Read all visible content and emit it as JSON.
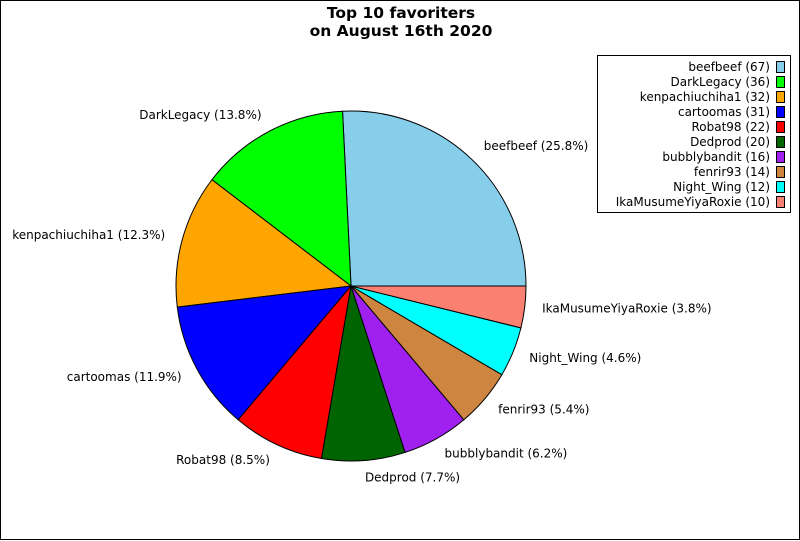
{
  "chart_data": {
    "type": "pie",
    "title_lines": [
      "Top 10 favoriters",
      "on August 16th 2020"
    ],
    "start_angle_deg": 0,
    "direction": "counterclockwise",
    "legend_position": "top-right",
    "slices": [
      {
        "name": "beefbeef",
        "value": 67,
        "percent_label": "beefbeef (25.8%)",
        "legend_label": "beefbeef (67)",
        "color": "#87ceeb"
      },
      {
        "name": "DarkLegacy",
        "value": 36,
        "percent_label": "DarkLegacy (13.8%)",
        "legend_label": "DarkLegacy (36)",
        "color": "#00ff00"
      },
      {
        "name": "kenpachiuchiha1",
        "value": 32,
        "percent_label": "kenpachiuchiha1 (12.3%)",
        "legend_label": "kenpachiuchiha1 (32)",
        "color": "#ffa500"
      },
      {
        "name": "cartoomas",
        "value": 31,
        "percent_label": "cartoomas (11.9%)",
        "legend_label": "cartoomas (31)",
        "color": "#0000ff"
      },
      {
        "name": "Robat98",
        "value": 22,
        "percent_label": "Robat98 (8.5%)",
        "legend_label": "Robat98 (22)",
        "color": "#ff0000"
      },
      {
        "name": "Dedprod",
        "value": 20,
        "percent_label": "Dedprod (7.7%)",
        "legend_label": "Dedprod (20)",
        "color": "#006400"
      },
      {
        "name": "bubblybandit",
        "value": 16,
        "percent_label": "bubblybandit (6.2%)",
        "legend_label": "bubblybandit (16)",
        "color": "#a020f0"
      },
      {
        "name": "fenrir93",
        "value": 14,
        "percent_label": "fenrir93 (5.4%)",
        "legend_label": "fenrir93 (14)",
        "color": "#cd853f"
      },
      {
        "name": "Night_Wing",
        "value": 12,
        "percent_label": "Night_Wing (4.6%)",
        "legend_label": "Night_Wing (12)",
        "color": "#00ffff"
      },
      {
        "name": "IkaMusumeYiyaRoxie",
        "value": 10,
        "percent_label": "IkaMusumeYiyaRoxie (3.8%)",
        "legend_label": "IkaMusumeYiyaRoxie (10)",
        "color": "#fa8072"
      }
    ]
  }
}
